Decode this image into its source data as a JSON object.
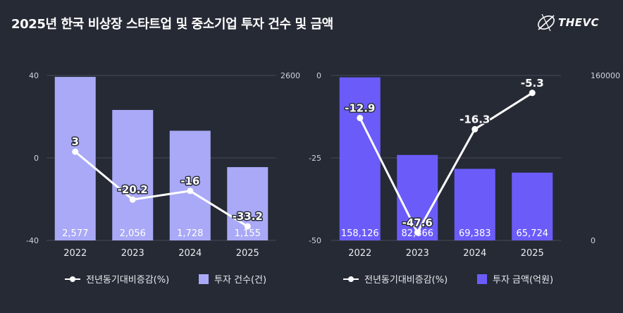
{
  "title": "2025년 한국 비상장 스타트업 및 중소기업 투자 건수 및 금액",
  "brand": {
    "name": "THEVC"
  },
  "chart_data": [
    {
      "type": "bar",
      "categories": [
        "2022",
        "2023",
        "2024",
        "2025"
      ],
      "series": [
        {
          "name": "투자 건수(건)",
          "kind": "bar",
          "axis": "right",
          "color": "#a9a9f7",
          "values": [
            2577,
            2056,
            1728,
            1155
          ],
          "labels": [
            "2,577",
            "2,056",
            "1,728",
            "1,155"
          ]
        },
        {
          "name": "전년동기대비증감(%)",
          "kind": "line",
          "axis": "left",
          "color": "#ffffff",
          "values": [
            3,
            -20.2,
            -16,
            -33.2
          ],
          "labels": [
            "3",
            "-20.2",
            "-16",
            "-33.2"
          ]
        }
      ],
      "left_axis": {
        "ylim": [
          -40,
          40
        ],
        "ticks": [
          "40",
          "0",
          "-40"
        ]
      },
      "right_axis": {
        "ylim": [
          0,
          2600
        ],
        "ticks": [
          "2600"
        ]
      },
      "legend": [
        "전년동기대비증감(%)",
        "투자 건수(건)"
      ],
      "legend_position": "bottom"
    },
    {
      "type": "bar",
      "categories": [
        "2022",
        "2023",
        "2024",
        "2025"
      ],
      "series": [
        {
          "name": "투자 금액(억원)",
          "kind": "bar",
          "axis": "right",
          "color": "#6b5cf9",
          "values": [
            158126,
            82866,
            69383,
            65724
          ],
          "labels": [
            "158,126",
            "82,866",
            "69,383",
            "65,724"
          ]
        },
        {
          "name": "전년동기대비증감(%)",
          "kind": "line",
          "axis": "left",
          "color": "#ffffff",
          "values": [
            -12.9,
            -47.6,
            -16.3,
            -5.3
          ],
          "labels": [
            "-12.9",
            "-47.6",
            "-16.3",
            "-5.3"
          ]
        }
      ],
      "left_axis": {
        "ylim": [
          -50,
          0
        ],
        "ticks": [
          "0",
          "-25",
          "-50"
        ]
      },
      "right_axis": {
        "ylim": [
          0,
          160000
        ],
        "ticks": [
          "160000",
          "0"
        ]
      },
      "legend": [
        "전년동기대비증감(%)",
        "투자 금액(억원)"
      ],
      "legend_position": "bottom"
    }
  ]
}
